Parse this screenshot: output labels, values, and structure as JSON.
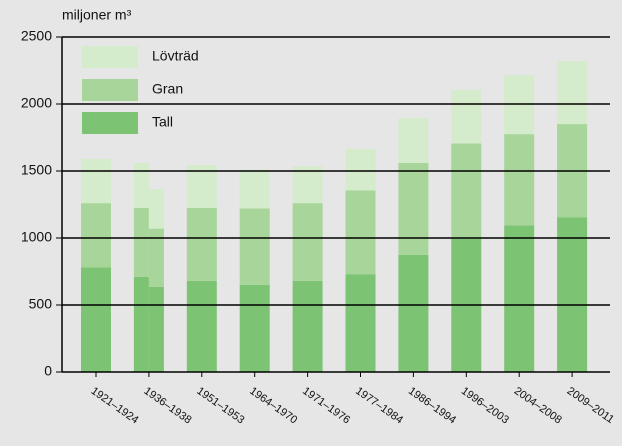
{
  "chart_data": {
    "type": "bar",
    "stacked": true,
    "ylabel": "miljoner m³",
    "categories": [
      "1921–1924",
      "1936–1938",
      null,
      "1951–1953",
      "1964–1970",
      "1971–1976",
      "1977–1984",
      "1986–1994",
      "1996–2003",
      "2004–2008",
      "2009–2011"
    ],
    "series": [
      {
        "name": "Tall",
        "color": "#7dc374",
        "values": [
          780,
          710,
          635,
          680,
          650,
          680,
          730,
          875,
          995,
          1095,
          1155
        ]
      },
      {
        "name": "Gran",
        "color": "#a8d59a",
        "values": [
          480,
          515,
          435,
          545,
          570,
          580,
          625,
          685,
          710,
          680,
          695
        ]
      },
      {
        "name": "Lövträd",
        "color": "#d4ebcc",
        "values": [
          330,
          335,
          295,
          320,
          290,
          275,
          310,
          335,
          400,
          440,
          470
        ]
      }
    ],
    "ylim": [
      0,
      2500
    ],
    "yticks": [
      0,
      500,
      1000,
      1500,
      2000,
      2500
    ],
    "grid": true,
    "legend": "top-left"
  }
}
